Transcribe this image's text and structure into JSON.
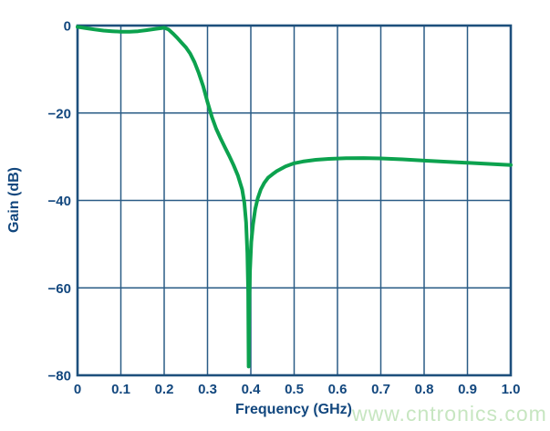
{
  "colors": {
    "curve": "#0ca24e",
    "grid": "#2a5c86",
    "border": "#1d4f7c",
    "label": "#12477e",
    "watermark": "#c7e6c1"
  },
  "watermark": {
    "text": "www.cntronics.com"
  },
  "chart_data": {
    "type": "line",
    "title": "",
    "xlabel": "Frequency (GHz)",
    "ylabel": "Gain (dB)",
    "xlim": [
      0,
      1.0
    ],
    "ylim": [
      -80,
      0
    ],
    "grid": true,
    "legend": "none",
    "x_ticks": [
      0,
      0.1,
      0.2,
      0.3,
      0.4,
      0.5,
      0.6,
      0.7,
      0.8,
      0.9,
      1.0
    ],
    "x_tick_labels": [
      "0",
      "0.1",
      "0.2",
      "0.3",
      "0.4",
      "0.5",
      "0.6",
      "0.7",
      "0.8",
      "0.9",
      "1.0"
    ],
    "y_ticks": [
      0,
      -20,
      -40,
      -60,
      -80
    ],
    "y_tick_labels": [
      "0",
      "−20",
      "−40",
      "−60",
      "−80"
    ],
    "series": [
      {
        "name": "Gain",
        "color": "#0ca24e",
        "x": [
          0,
          0.02,
          0.04,
          0.06,
          0.08,
          0.1,
          0.12,
          0.14,
          0.16,
          0.18,
          0.2,
          0.21,
          0.22,
          0.23,
          0.24,
          0.25,
          0.26,
          0.27,
          0.28,
          0.29,
          0.3,
          0.31,
          0.32,
          0.33,
          0.34,
          0.35,
          0.36,
          0.37,
          0.38,
          0.385,
          0.389,
          0.392,
          0.394,
          0.395,
          0.3965,
          0.398,
          0.401,
          0.405,
          0.41,
          0.416,
          0.423,
          0.431,
          0.44,
          0.45,
          0.46,
          0.48,
          0.5,
          0.52,
          0.55,
          0.58,
          0.62,
          0.66,
          0.7,
          0.75,
          0.8,
          0.85,
          0.9,
          0.95,
          1.0
        ],
        "y": [
          -0.3,
          -0.6,
          -0.9,
          -1.15,
          -1.3,
          -1.4,
          -1.4,
          -1.3,
          -1.05,
          -0.75,
          -0.5,
          -0.9,
          -1.8,
          -2.8,
          -3.9,
          -5.0,
          -6.4,
          -8.4,
          -10.9,
          -13.9,
          -17.5,
          -20.9,
          -23.6,
          -25.8,
          -27.8,
          -29.8,
          -31.9,
          -34.3,
          -37.5,
          -40.5,
          -45.0,
          -52.0,
          -61.0,
          -78.0,
          -63.0,
          -56.0,
          -49.5,
          -45.5,
          -42.0,
          -39.5,
          -37.5,
          -36.0,
          -34.8,
          -34.0,
          -33.3,
          -32.2,
          -31.5,
          -31.1,
          -30.7,
          -30.5,
          -30.35,
          -30.3,
          -30.4,
          -30.6,
          -30.9,
          -31.15,
          -31.4,
          -31.65,
          -31.9
        ]
      }
    ],
    "notch_frequency_ghz": 0.395,
    "notch_depth_db": -78,
    "stopband_level_db": -30.3
  }
}
